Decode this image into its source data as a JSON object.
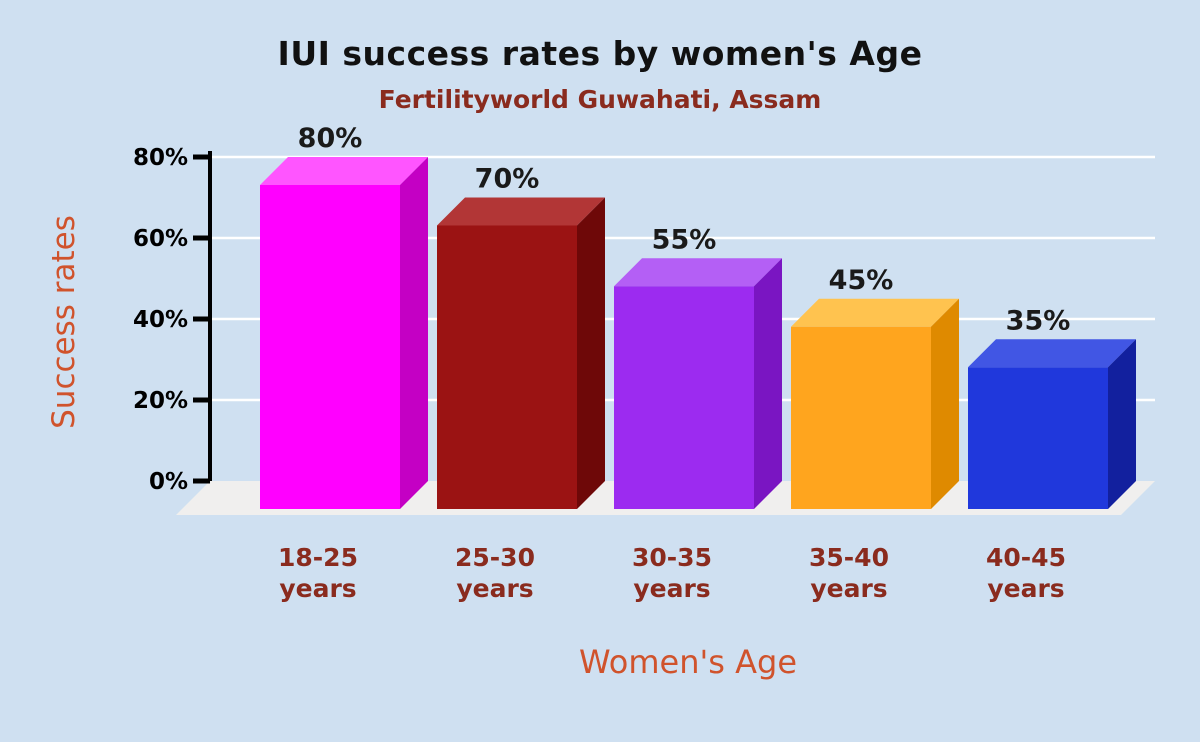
{
  "chart_data": {
    "type": "bar",
    "style": "3d-column",
    "title": "IUI success rates by women's Age",
    "subtitle": "Fertilityworld Guwahati, Assam",
    "xlabel": "Women's Age",
    "ylabel": "Success rates",
    "categories": [
      "18-25 years",
      "25-30 years",
      "30-35 years",
      "35-40 years",
      "40-45 years"
    ],
    "values": [
      80,
      70,
      55,
      45,
      35
    ],
    "value_labels": [
      "80%",
      "70%",
      "55%",
      "45%",
      "35%"
    ],
    "yticks": [
      0,
      20,
      40,
      60,
      80
    ],
    "ytick_labels": [
      "0%",
      "20%",
      "40%",
      "60%",
      "80%"
    ],
    "ylim": [
      0,
      80
    ],
    "grid": true,
    "legend": "none",
    "bar_colors": [
      {
        "front": "#ff00ff",
        "top": "#ff55ff",
        "side": "#c400c4"
      },
      {
        "front": "#9b1313",
        "top": "#b23636",
        "side": "#6e0808"
      },
      {
        "front": "#9c2bf0",
        "top": "#b45ff5",
        "side": "#7a15c2"
      },
      {
        "front": "#ffa51e",
        "top": "#ffc34f",
        "side": "#df8a00"
      },
      {
        "front": "#2038dc",
        "top": "#4156e4",
        "side": "#12209e"
      }
    ],
    "colors": {
      "background": "#cfe0f1",
      "grid": "#ffffff",
      "floor": "#f0efee",
      "axis": "#000000",
      "tick_text": "#000000",
      "value_text": "#1a1a1a",
      "category_text": "#8a2b1e",
      "axis_title_text": "#d0532c",
      "title_text": "#111111",
      "subtitle_text": "#8a2b1e"
    }
  }
}
